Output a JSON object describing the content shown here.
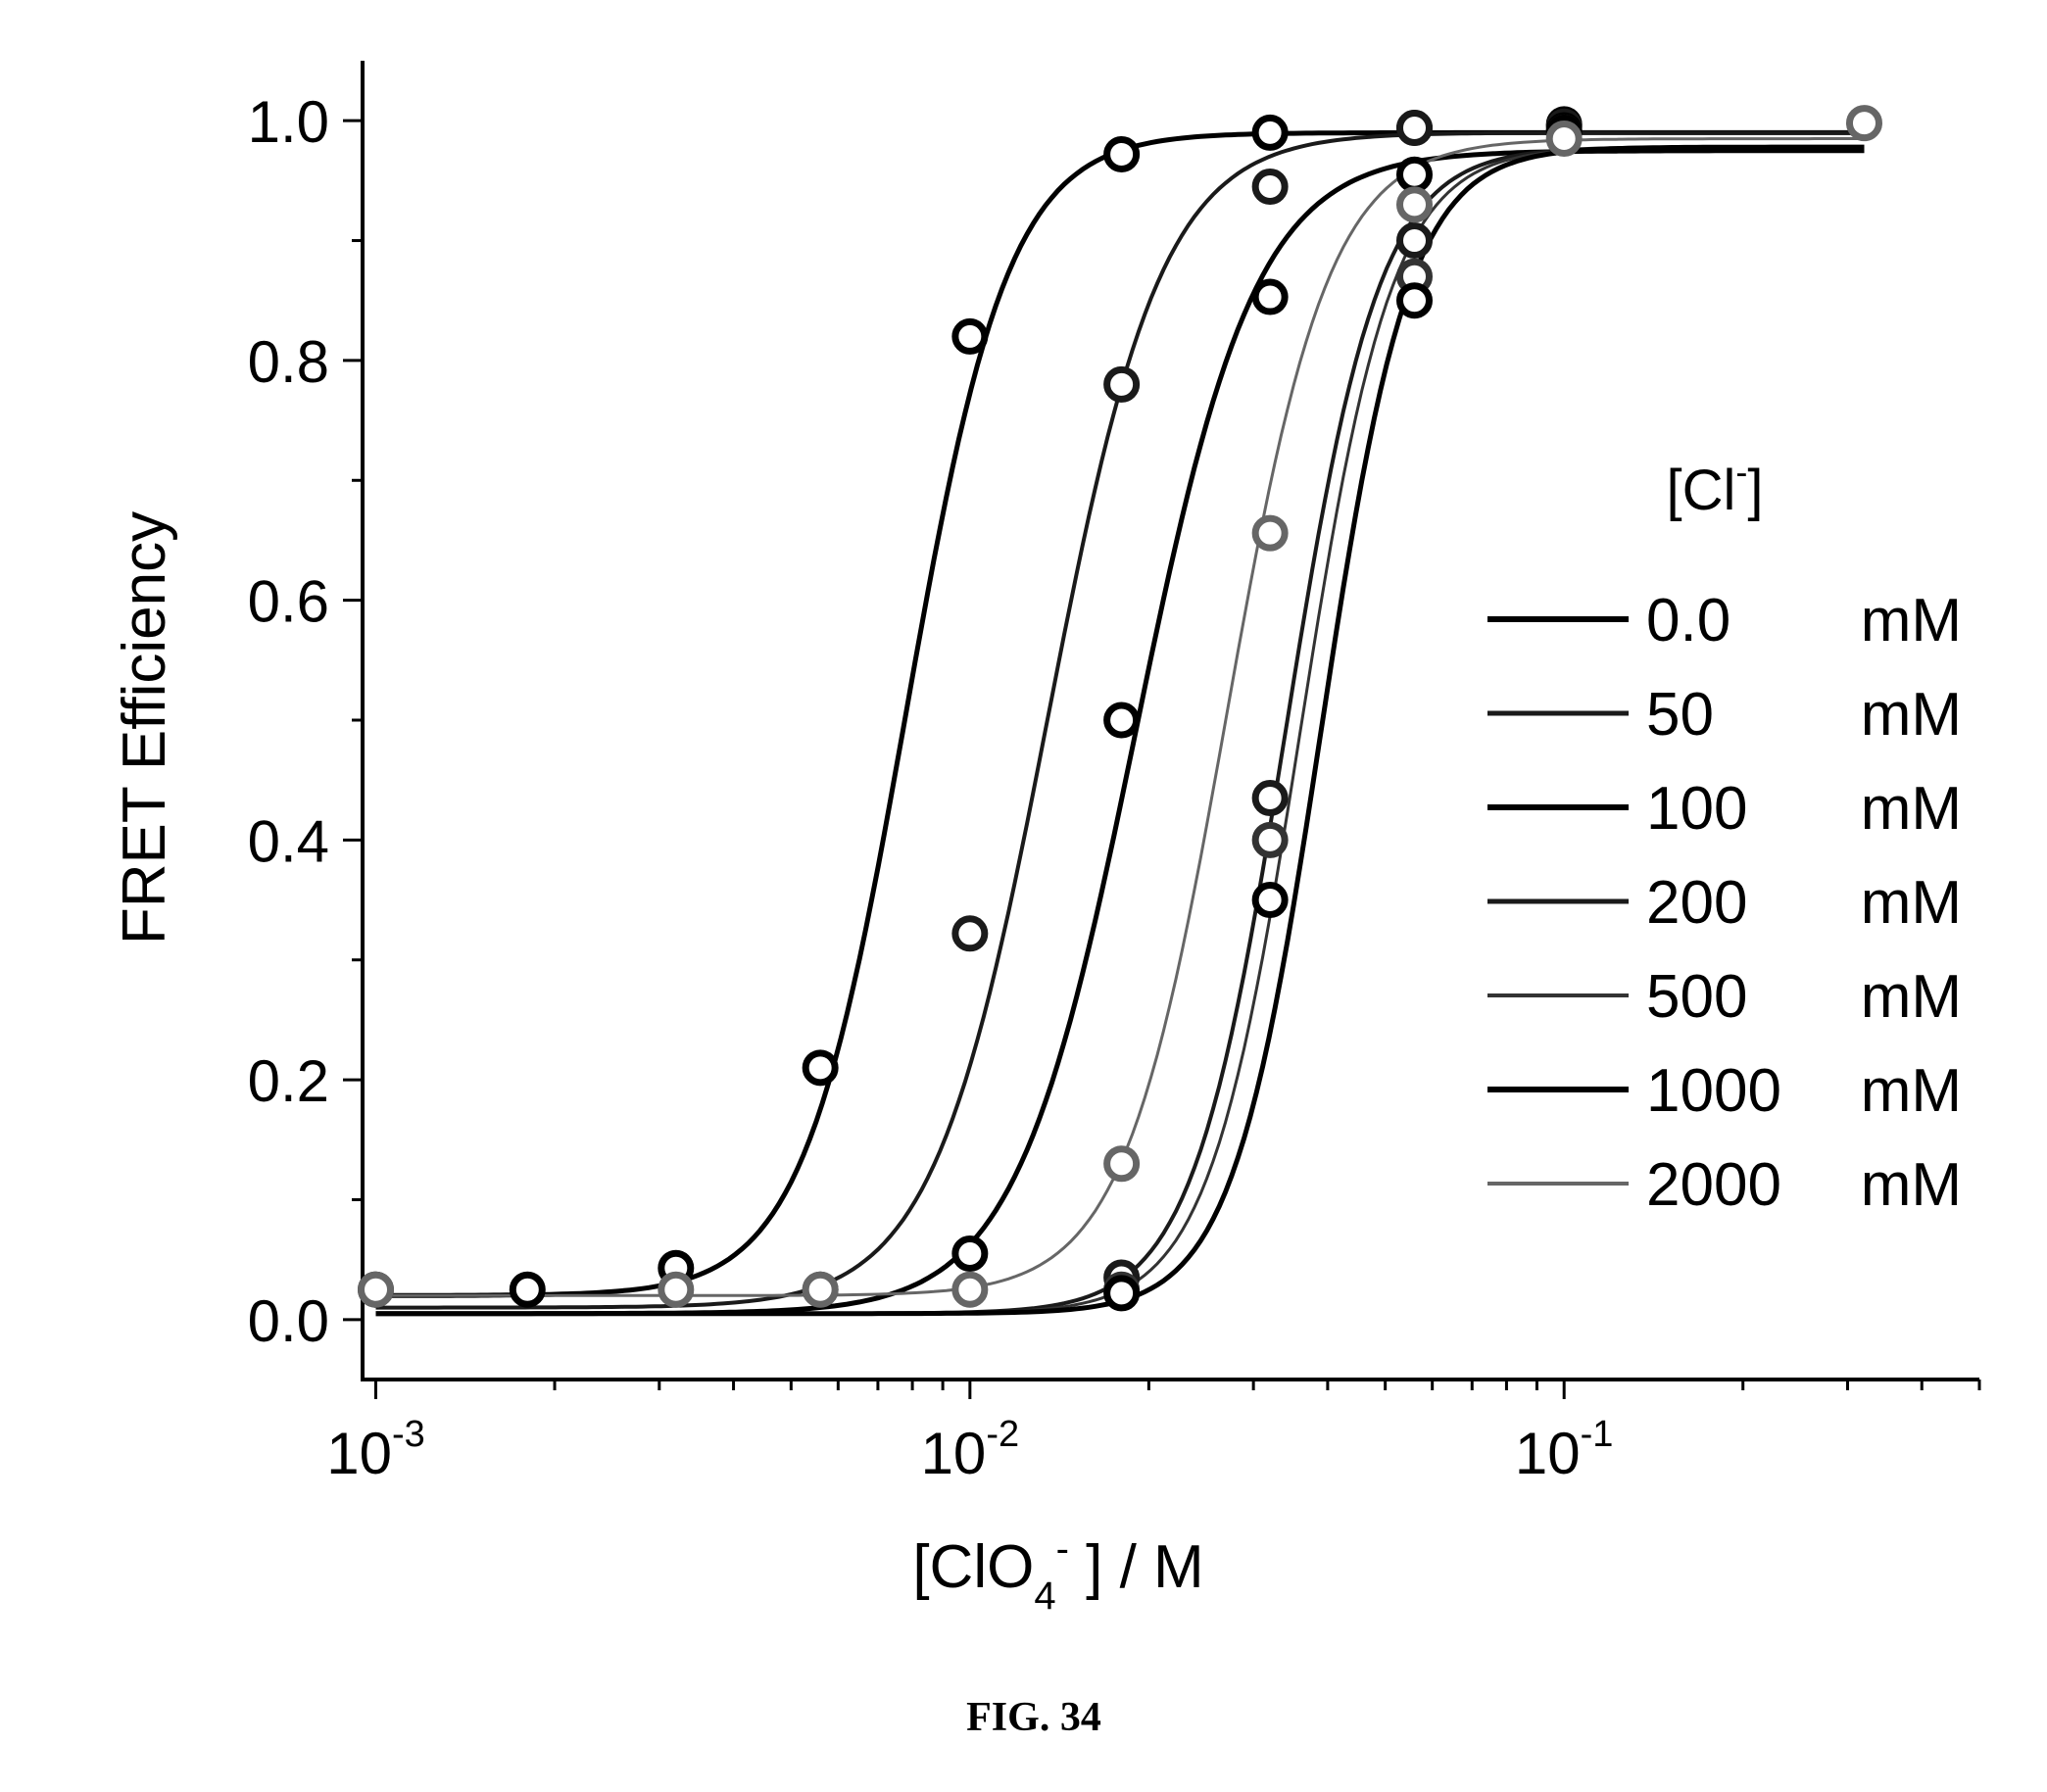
{
  "figure_label": "FIG. 34",
  "chart_data": {
    "type": "scatter",
    "title": "",
    "xlabel": {
      "prefix": "[ClO",
      "sub": "4",
      "sup": "-",
      "suffix": " ] / M"
    },
    "ylabel": "FRET Efficiency",
    "xscale": "log",
    "xlim": [
      0.00095,
      0.5
    ],
    "ylim": [
      -0.05,
      1.05
    ],
    "x_ticks": [
      {
        "value": 0.001,
        "base": "10",
        "exp": "-3"
      },
      {
        "value": 0.01,
        "base": "10",
        "exp": "-2"
      },
      {
        "value": 0.1,
        "base": "10",
        "exp": "-1"
      }
    ],
    "y_ticks": [
      {
        "value": 0.0,
        "label": "0.0"
      },
      {
        "value": 0.2,
        "label": "0.2"
      },
      {
        "value": 0.4,
        "label": "0.4"
      },
      {
        "value": 0.6,
        "label": "0.6"
      },
      {
        "value": 0.8,
        "label": "0.8"
      },
      {
        "value": 1.0,
        "label": "1.0"
      }
    ],
    "grid": false,
    "legend_position": "right",
    "legend_title": {
      "text": "[Cl",
      "sup": "-",
      "close": "]"
    },
    "series": [
      {
        "name": "0.0",
        "unit": "mM",
        "color": "#000000",
        "stroke_width": 5,
        "fit_x50": 0.0078,
        "fit_n": 5.0,
        "fit_min": 0.02,
        "fit_max": 0.99,
        "x": [
          0.001,
          0.0018,
          0.0032,
          0.0056,
          0.01,
          0.018,
          0.032,
          0.056,
          0.1
        ],
        "y": [
          0.025,
          0.025,
          0.043,
          0.21,
          0.82,
          0.972,
          0.99,
          0.994,
          0.997
        ]
      },
      {
        "name": "50",
        "unit": "mM",
        "color": "#1a1a1a",
        "stroke_width": 4,
        "fit_x50": 0.0135,
        "fit_n": 4.5,
        "fit_min": 0.01,
        "fit_max": 0.99,
        "x": [
          0.0056,
          0.01,
          0.018,
          0.032,
          0.056,
          0.1
        ],
        "y": [
          0.025,
          0.322,
          0.78,
          0.945,
          0.994,
          0.995
        ]
      },
      {
        "name": "100",
        "unit": "mM",
        "color": "#000000",
        "stroke_width": 5,
        "fit_x50": 0.019,
        "fit_n": 4.3,
        "fit_min": 0.005,
        "fit_max": 0.975,
        "x": [
          0.01,
          0.018,
          0.032,
          0.056,
          0.1
        ],
        "y": [
          0.055,
          0.5,
          0.853,
          0.955,
          0.992
        ]
      },
      {
        "name": "200",
        "unit": "mM",
        "color": "#1a1a1a",
        "stroke_width": 4,
        "fit_x50": 0.034,
        "fit_n": 5.5,
        "fit_min": 0.005,
        "fit_max": 0.978,
        "x": [
          0.018,
          0.032,
          0.056,
          0.1
        ],
        "y": [
          0.035,
          0.435,
          0.9,
          0.99
        ]
      },
      {
        "name": "500",
        "unit": "mM",
        "color": "#333333",
        "stroke_width": 3,
        "fit_x50": 0.036,
        "fit_n": 5.6,
        "fit_min": 0.005,
        "fit_max": 0.978,
        "x": [
          0.018,
          0.032,
          0.056,
          0.1
        ],
        "y": [
          0.025,
          0.4,
          0.87,
          0.99
        ]
      },
      {
        "name": "1000",
        "unit": "mM",
        "color": "#000000",
        "stroke_width": 5,
        "fit_x50": 0.039,
        "fit_n": 5.8,
        "fit_min": 0.005,
        "fit_max": 0.978,
        "x": [
          0.018,
          0.032,
          0.056,
          0.1
        ],
        "y": [
          0.022,
          0.35,
          0.85,
          0.99
        ]
      },
      {
        "name": "2000",
        "unit": "mM",
        "color": "#666666",
        "stroke_width": 3,
        "fit_x50": 0.027,
        "fit_n": 5.0,
        "fit_min": 0.02,
        "fit_max": 0.985,
        "x": [
          0.001,
          0.0032,
          0.0056,
          0.01,
          0.018,
          0.032,
          0.056,
          0.1,
          0.32
        ],
        "y": [
          0.025,
          0.025,
          0.025,
          0.025,
          0.13,
          0.656,
          0.93,
          0.985,
          0.998
        ]
      }
    ]
  }
}
